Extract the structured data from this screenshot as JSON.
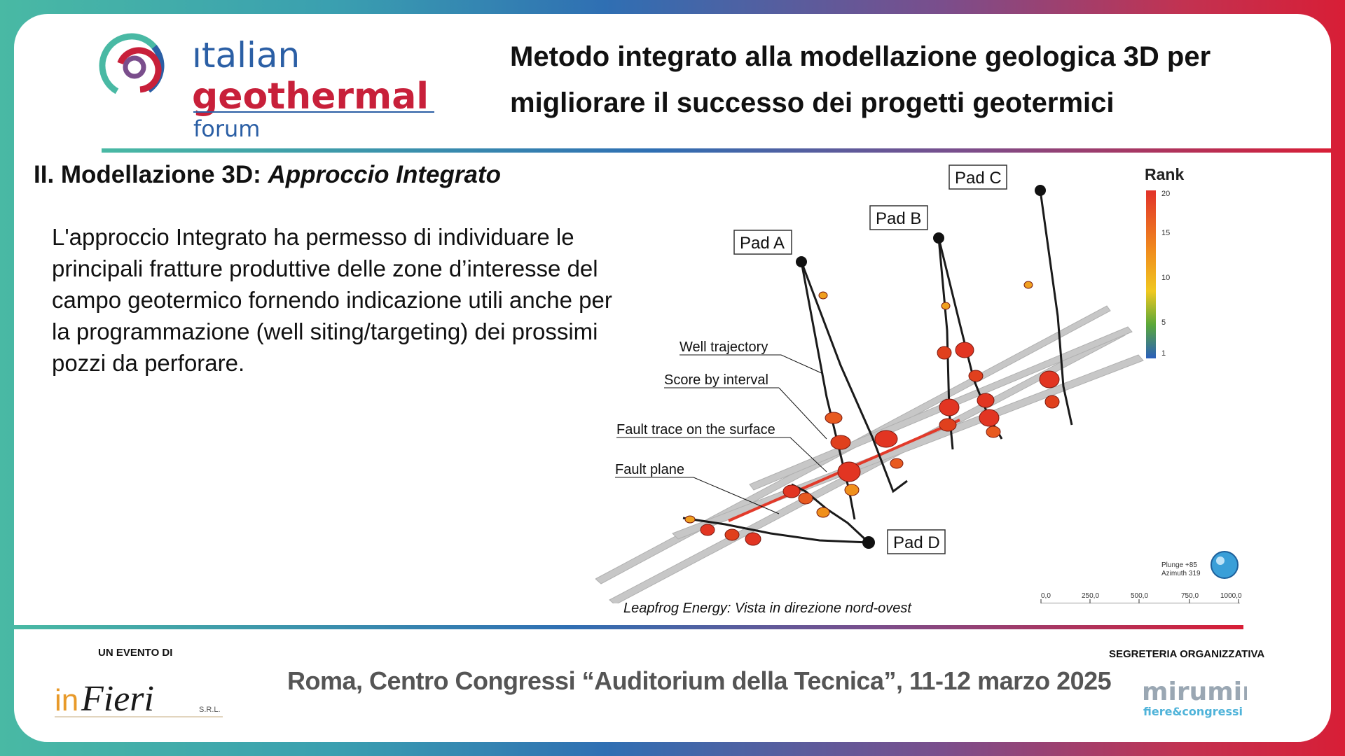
{
  "header": {
    "logo": {
      "line1": "ıtalian",
      "line2": "geothermal",
      "line3": "forum"
    },
    "title_line1": "Metodo integrato alla modellazione geologica 3D per",
    "title_line2": "migliorare il successo dei progetti geotermici"
  },
  "section": {
    "heading_plain": "II. Modellazione 3D: ",
    "heading_italic": "Approccio Integrato"
  },
  "body_text": "L'approccio Integrato ha permesso di individuare le principali fratture produttive delle zone d’interesse del campo geotermico fornendo indicazione utili anche per la programmazione (well siting/targeting) dei prossimi pozzi da perforare.",
  "figure": {
    "pads": [
      "Pad A",
      "Pad B",
      "Pad C",
      "Pad D"
    ],
    "annotations": [
      "Well trajectory",
      "Score by interval",
      "Fault trace on the surface",
      "Fault plane"
    ],
    "legend": {
      "title": "Rank",
      "ticks": [
        "20",
        "15",
        "10",
        "5",
        "1"
      ]
    },
    "compass": {
      "plunge": "Plunge +85",
      "azimuth": "Azimuth 319"
    },
    "scale_ticks": [
      "0,0",
      "250,0",
      "500,0",
      "750,0",
      "1000,0"
    ],
    "caption": "Leapfrog Energy: Vista in direzione nord-ovest"
  },
  "footer": {
    "event_label": "UN EVENTO DI",
    "event_logo": {
      "text_in": "in",
      "text_fieri": "Fieri",
      "srl": "S.R.L."
    },
    "venue": "Roma, Centro Congressi “Auditorium della Tecnica”, 11-12 marzo 2025",
    "secretariat_label": "SEGRETERIA ORGANIZZATIVA",
    "secretariat_logo": {
      "line1": "mirumir",
      "line2": "fiere&congressi"
    }
  },
  "colors": {
    "teal": "#49b9a4",
    "blue": "#2f6fb3",
    "red": "#d81e36",
    "logo_blue": "#2b5fa5",
    "logo_red": "#c8203a"
  }
}
